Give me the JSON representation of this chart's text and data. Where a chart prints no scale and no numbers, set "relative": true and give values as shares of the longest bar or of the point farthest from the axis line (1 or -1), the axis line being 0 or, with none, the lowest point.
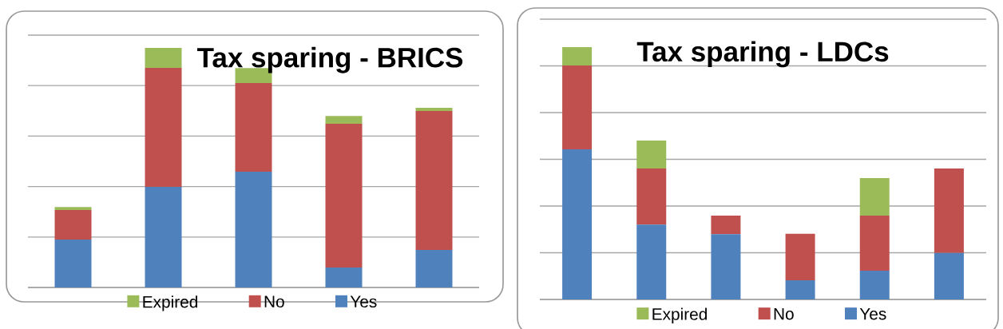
{
  "chart_data": [
    {
      "type": "bar",
      "title": "Tax sparing - BRICS",
      "stacked": true,
      "relative": true,
      "categories": [
        null,
        null,
        null,
        null,
        null
      ],
      "grid": "y",
      "legend": "bottom",
      "series": [
        {
          "name": "Yes",
          "color": "#4f81bd",
          "values": [
            0.2,
            0.42,
            0.483,
            0.083,
            0.157
          ]
        },
        {
          "name": "No",
          "color": "#c0504d",
          "values": [
            0.123,
            0.497,
            0.37,
            0.6,
            0.58
          ]
        },
        {
          "name": "Expired",
          "color": "#9bbb59",
          "values": [
            0.013,
            0.083,
            0.063,
            0.033,
            0.013
          ]
        }
      ]
    },
    {
      "type": "bar",
      "title": "Tax sparing - LDCs",
      "stacked": true,
      "relative": true,
      "categories": [
        null,
        null,
        null,
        null,
        null,
        null
      ],
      "grid": "y",
      "legend": "bottom",
      "series": [
        {
          "name": "Yes",
          "color": "#4f81bd",
          "values": [
            0.595,
            0.297,
            0.259,
            0.076,
            0.114,
            0.184
          ]
        },
        {
          "name": "No",
          "color": "#c0504d",
          "values": [
            0.332,
            0.222,
            0.073,
            0.184,
            0.218,
            0.335
          ]
        },
        {
          "name": "Expired",
          "color": "#9bbb59",
          "values": [
            0.073,
            0.111,
            null,
            null,
            0.149,
            null
          ]
        }
      ]
    }
  ]
}
